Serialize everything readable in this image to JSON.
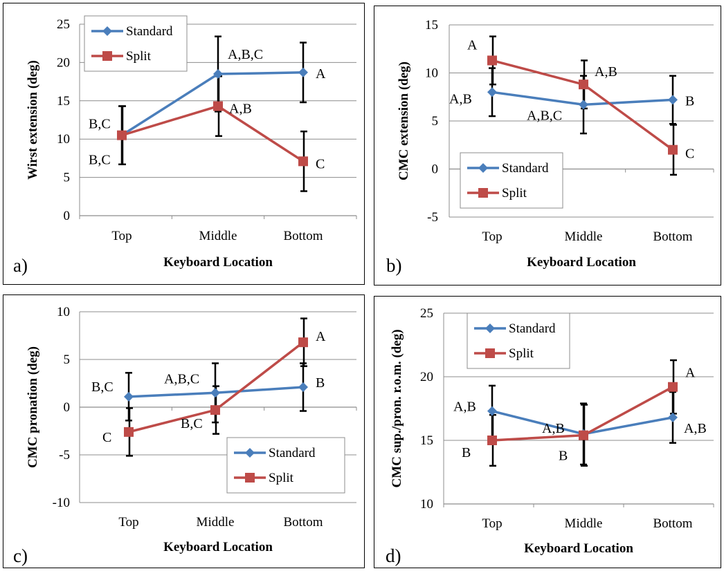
{
  "colors": {
    "standard": "#4a7ebb",
    "split": "#be4b48",
    "grid": "#8c8c8c",
    "error": "#000000"
  },
  "chart_data": [
    {
      "id": "a",
      "type": "line",
      "panel_label": "a)",
      "xlabel": "Keyboard Location",
      "ylabel": "Wirst extension (deg)",
      "categories": [
        "Top",
        "Middle",
        "Bottom"
      ],
      "ylim": [
        0,
        25
      ],
      "yticks": [
        0,
        5,
        10,
        15,
        20,
        25
      ],
      "legend": "top-left",
      "series": [
        {
          "name": "Standard",
          "values": [
            10.5,
            18.5,
            18.7
          ],
          "errors": [
            3.8,
            4.9,
            3.9
          ],
          "labels": [
            "B,C",
            "A,B,C",
            "A"
          ]
        },
        {
          "name": "Split",
          "values": [
            10.5,
            14.3,
            7.1
          ],
          "errors": [
            3.8,
            3.9,
            3.9
          ],
          "labels": [
            "B,C",
            "A,B",
            "C"
          ]
        }
      ]
    },
    {
      "id": "b",
      "type": "line",
      "panel_label": "b)",
      "xlabel": "Keyboard Location",
      "ylabel": "CMC extension (deg)",
      "categories": [
        "Top",
        "Middle",
        "Bottom"
      ],
      "ylim": [
        -5,
        15
      ],
      "yticks": [
        -5,
        0,
        5,
        10,
        15
      ],
      "legend": "bottom-left",
      "series": [
        {
          "name": "Standard",
          "values": [
            8.0,
            6.7,
            7.2
          ],
          "errors": [
            2.5,
            3.0,
            2.5
          ],
          "labels": [
            "A,B",
            "A,B,C",
            "B"
          ]
        },
        {
          "name": "Split",
          "values": [
            11.3,
            8.8,
            2.0
          ],
          "errors": [
            2.5,
            2.5,
            2.6
          ],
          "labels": [
            "A",
            "A,B",
            "C"
          ]
        }
      ]
    },
    {
      "id": "c",
      "type": "line",
      "panel_label": "c)",
      "xlabel": "Keyboard Location",
      "ylabel": "CMC pronation (deg)",
      "categories": [
        "Top",
        "Middle",
        "Bottom"
      ],
      "ylim": [
        -10,
        10
      ],
      "yticks": [
        -10,
        -5,
        0,
        5,
        10
      ],
      "legend": "bottom-right",
      "series": [
        {
          "name": "Standard",
          "values": [
            1.1,
            1.5,
            2.1
          ],
          "errors": [
            2.5,
            3.1,
            2.5
          ],
          "labels": [
            "B,C",
            "A,B,C",
            "B"
          ]
        },
        {
          "name": "Split",
          "values": [
            -2.6,
            -0.3,
            6.8
          ],
          "errors": [
            2.5,
            2.5,
            2.5
          ],
          "labels": [
            "C",
            "B,C",
            "A"
          ]
        }
      ]
    },
    {
      "id": "d",
      "type": "line",
      "panel_label": "d)",
      "xlabel": "Keyboard Location",
      "ylabel": "CMC sup./pron. r.o.m. (deg)",
      "categories": [
        "Top",
        "Middle",
        "Bottom"
      ],
      "ylim": [
        10,
        25
      ],
      "yticks": [
        10,
        15,
        20,
        25
      ],
      "legend": "top-left",
      "series": [
        {
          "name": "Standard",
          "values": [
            17.3,
            15.5,
            16.8
          ],
          "errors": [
            2.0,
            2.4,
            2.0
          ],
          "labels": [
            "A,B",
            "A,B",
            "A,B"
          ]
        },
        {
          "name": "Split",
          "values": [
            15.0,
            15.4,
            19.2
          ],
          "errors": [
            2.0,
            2.4,
            2.1
          ],
          "labels": [
            "B",
            "B",
            "A"
          ]
        }
      ]
    }
  ]
}
